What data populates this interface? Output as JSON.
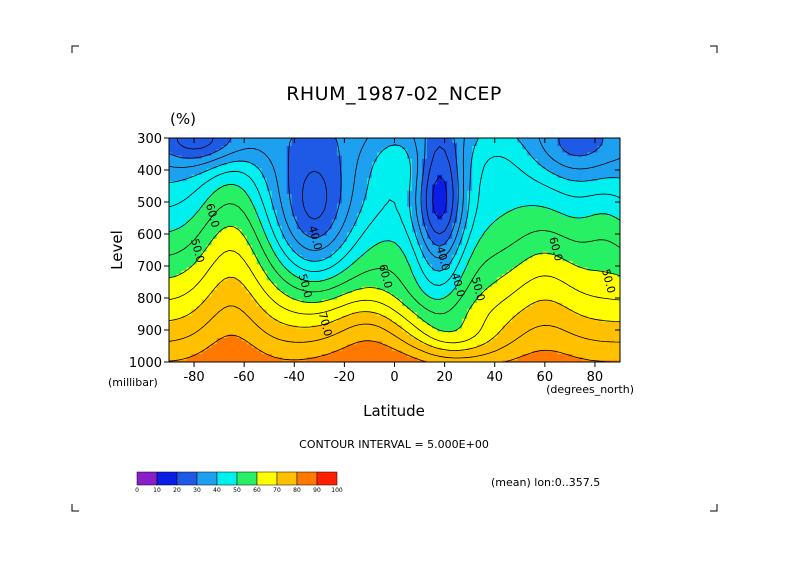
{
  "chart_data": {
    "type": "contour",
    "title": "RHUM_1987-02_NCEP",
    "units": "(%)",
    "xlabel": "Latitude",
    "ylabel": "Level",
    "x_unit": "(degrees_north)",
    "y_unit": "(millibar)",
    "xlim": [
      -90,
      90
    ],
    "ylim": [
      1000,
      300
    ],
    "x_ticks": [
      "-80",
      "-60",
      "-40",
      "-20",
      "0",
      "20",
      "40",
      "60",
      "80"
    ],
    "x_tick_values": [
      -80,
      -60,
      -40,
      -20,
      0,
      20,
      40,
      60,
      80
    ],
    "y_ticks": [
      "300",
      "400",
      "500",
      "600",
      "700",
      "800",
      "900",
      "1000"
    ],
    "y_tick_values": [
      300,
      400,
      500,
      600,
      700,
      800,
      900,
      1000
    ],
    "contour_interval": "CONTOUR INTERVAL = 5.000E+00",
    "annotation": "(mean) lon:0..357.5",
    "contour_labels": [
      {
        "text": "60.0",
        "lat": -74,
        "lev": 545
      },
      {
        "text": "50.0",
        "lat": -80,
        "lev": 655
      },
      {
        "text": "40.0",
        "lat": -33,
        "lev": 615
      },
      {
        "text": "50.0",
        "lat": -37,
        "lev": 765
      },
      {
        "text": "70.0",
        "lat": -29,
        "lev": 885
      },
      {
        "text": "60.0",
        "lat": -5,
        "lev": 735
      },
      {
        "text": "40.0",
        "lat": 18,
        "lev": 680
      },
      {
        "text": "40.0",
        "lat": 24,
        "lev": 762
      },
      {
        "text": "50.0",
        "lat": 32,
        "lev": 775
      },
      {
        "text": "60.0",
        "lat": 63,
        "lev": 650
      },
      {
        "text": "50.0",
        "lat": 84,
        "lev": 750
      }
    ],
    "colorbar": {
      "ticks": [
        "0",
        "10",
        "20",
        "30",
        "40",
        "50",
        "60",
        "70",
        "80",
        "90",
        "100"
      ],
      "colors": [
        "#8a1ec8",
        "#0a1ee6",
        "#1e5ae6",
        "#1ea0f0",
        "#00f0f0",
        "#28f064",
        "#ffff00",
        "#ffc000",
        "#ff7800",
        "#ff1e00"
      ]
    },
    "grid": false,
    "legend": "colorbar-bottom-left"
  }
}
